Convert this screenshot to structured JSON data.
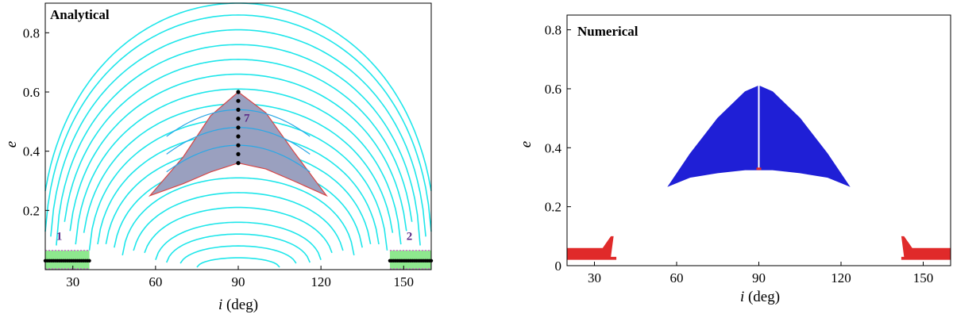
{
  "chart_data": [
    {
      "type": "contour",
      "title": "Analytical",
      "xlabel_italic": "i",
      "xlabel_rest": " (deg)",
      "ylabel": "e",
      "xlim": [
        20,
        160
      ],
      "ylim": [
        0,
        0.9
      ],
      "xticks": [
        30,
        60,
        90,
        120,
        150
      ],
      "yticks": [
        0.2,
        0.4,
        0.6,
        0.8
      ],
      "colors": {
        "contours": "#1ee6ea",
        "inner_contours": "#2aa8e6",
        "shaded": "#9aa0bf",
        "shaded_edge": "#d64545",
        "green_patch": "#8ee88e",
        "points": "#000000",
        "dotted": "#d25ad2"
      },
      "contour_levels": [
        0.04,
        0.08,
        0.12,
        0.16,
        0.21,
        0.26,
        0.31,
        0.36,
        0.41,
        0.46,
        0.51,
        0.56,
        0.61,
        0.66,
        0.71,
        0.76,
        0.81,
        0.86,
        0.9
      ],
      "shaded_region": {
        "upper": [
          [
            58,
            0.25
          ],
          [
            70,
            0.38
          ],
          [
            80,
            0.52
          ],
          [
            90,
            0.6
          ],
          [
            100,
            0.53
          ],
          [
            110,
            0.4
          ],
          [
            122,
            0.25
          ]
        ],
        "lower": [
          [
            58,
            0.25
          ],
          [
            70,
            0.29
          ],
          [
            80,
            0.33
          ],
          [
            90,
            0.36
          ],
          [
            100,
            0.34
          ],
          [
            110,
            0.3
          ],
          [
            122,
            0.25
          ]
        ]
      },
      "vertical_points": {
        "x": 90,
        "y": [
          0.36,
          0.39,
          0.42,
          0.45,
          0.48,
          0.51,
          0.54,
          0.57,
          0.6
        ]
      },
      "left_patch": {
        "x": [
          20,
          36
        ],
        "y_top": 0.065,
        "points_y": 0.03
      },
      "right_patch": {
        "x": [
          145,
          160
        ],
        "y_top": 0.065,
        "points_y": 0.03
      },
      "region_labels": [
        {
          "text": "7",
          "x": 92,
          "y": 0.5
        },
        {
          "text": "1",
          "x": 24,
          "y": 0.1
        },
        {
          "text": "2",
          "x": 151,
          "y": 0.1
        }
      ]
    },
    {
      "type": "heatmap",
      "title": "Numerical",
      "xlabel_italic": "i",
      "xlabel_rest": " (deg)",
      "ylabel": "e",
      "xlim": [
        20,
        160
      ],
      "ylim": [
        0,
        0.85
      ],
      "xticks": [
        30,
        60,
        90,
        120,
        150
      ],
      "yticks": [
        0,
        0.2,
        0.4,
        0.6,
        0.8
      ],
      "colors": {
        "blue_region": "#1f1fd6",
        "red_region": "#e02a2a",
        "gap": "#ffffff"
      },
      "blue_region": {
        "upper": [
          [
            57,
            0.27
          ],
          [
            65,
            0.38
          ],
          [
            75,
            0.5
          ],
          [
            85,
            0.59
          ],
          [
            90,
            0.61
          ],
          [
            95,
            0.59
          ],
          [
            105,
            0.5
          ],
          [
            115,
            0.38
          ],
          [
            123,
            0.27
          ]
        ],
        "lower": [
          [
            57,
            0.27
          ],
          [
            65,
            0.3
          ],
          [
            75,
            0.315
          ],
          [
            85,
            0.325
          ],
          [
            90,
            0.325
          ],
          [
            95,
            0.325
          ],
          [
            105,
            0.315
          ],
          [
            115,
            0.3
          ],
          [
            123,
            0.27
          ]
        ],
        "gap_x": 90
      },
      "red_left": {
        "x_start": 20,
        "x_end": 38,
        "top": 0.06,
        "tip_x": 36,
        "tip_top": 0.1
      },
      "red_right": {
        "x_start": 142,
        "x_end": 160,
        "top": 0.06,
        "tip_x": 143,
        "tip_top": 0.1
      }
    }
  ]
}
